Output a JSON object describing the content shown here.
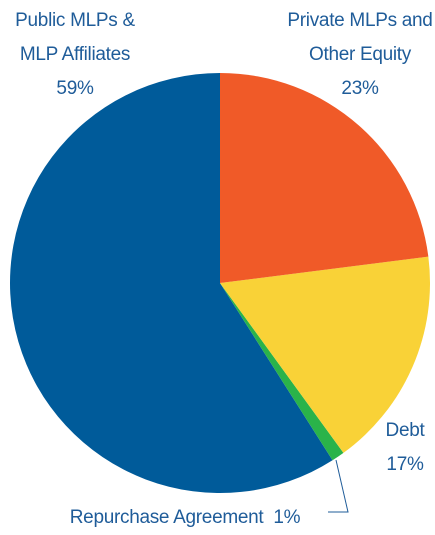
{
  "chart_data": {
    "type": "pie",
    "categories": [
      "Private MLPs and Other Equity",
      "Debt",
      "Repurchase Agreement",
      "Public MLPs & MLP Affiliates"
    ],
    "values": [
      23,
      17,
      1,
      59
    ],
    "value_labels": [
      "23%",
      "17%",
      "1%",
      "59%"
    ],
    "colors": [
      "#f05a28",
      "#f9d237",
      "#2ab34a",
      "#005b9a"
    ]
  }
}
